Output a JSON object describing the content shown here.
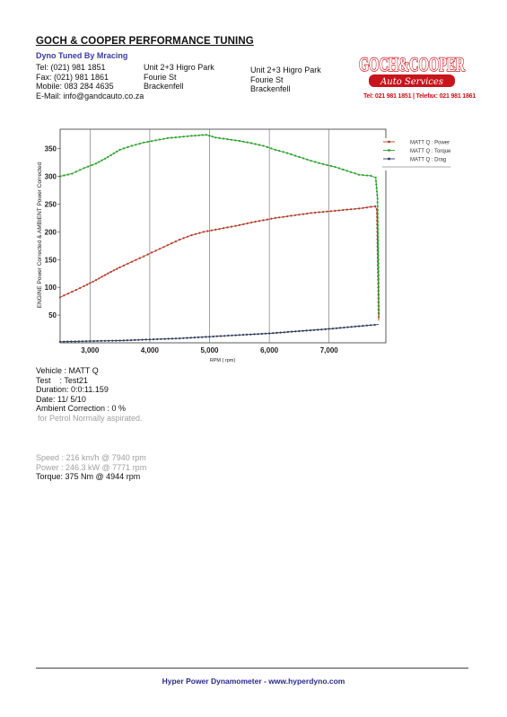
{
  "header": {
    "company": "GOCH & COOPER PERFORMANCE TUNING",
    "subtitle": "Dyno Tuned By Mracing",
    "contact": {
      "tel": "Tel: (021) 981 1851",
      "fax": "Fax: (021) 981 1861",
      "mobile": "Mobile: 083 284 4635",
      "email": "E-Mail: info@gandcauto.co.za"
    },
    "address1": [
      "Unit 2+3 Higro Park",
      "Fourie St",
      "Brackenfell"
    ],
    "address2": [
      "Unit 2+3 Higro Park",
      "Fourie St",
      "Brackenfell"
    ]
  },
  "logo": {
    "name": "GOCH&COOPER",
    "tagline": "Auto Services",
    "phone": "Tel: 021 981 1851 | Telefax: 021 981 1861",
    "color": "#c8141c"
  },
  "chart_data": {
    "type": "line",
    "xlabel": "RPM ( rpm)",
    "ylabel": "ENGINE Power Corrected & AMBIENT Power Corrected",
    "xlim": [
      2500,
      7950
    ],
    "ylim": [
      0,
      385
    ],
    "xticks": [
      3000,
      4000,
      5000,
      6000,
      7000
    ],
    "xtick_labels": [
      "3,000",
      "4,000",
      "5,000",
      "6,000",
      "7,000"
    ],
    "yticks": [
      50,
      100,
      150,
      200,
      250,
      300,
      350
    ],
    "legend_position": "top-right",
    "grid": "vertical",
    "series": [
      {
        "name": "MATT Q : Power",
        "color": "#b23a2a",
        "x": [
          2500,
          2700,
          2900,
          3100,
          3300,
          3500,
          3700,
          3900,
          4100,
          4300,
          4500,
          4700,
          4900,
          5100,
          5300,
          5500,
          5700,
          5900,
          6100,
          6300,
          6500,
          6700,
          6900,
          7100,
          7300,
          7500,
          7700,
          7771,
          7800,
          7820,
          7830
        ],
        "values": [
          82,
          92,
          102,
          113,
          125,
          136,
          146,
          156,
          166,
          176,
          186,
          194,
          200,
          204,
          208,
          212,
          217,
          221,
          225,
          228,
          231,
          234,
          236,
          238,
          240,
          242,
          245,
          246,
          240,
          120,
          40
        ]
      },
      {
        "name": "MATT Q : Torque",
        "color": "#2aa02a",
        "x": [
          2500,
          2700,
          2900,
          3100,
          3300,
          3500,
          3700,
          3900,
          4100,
          4300,
          4500,
          4700,
          4944,
          5100,
          5300,
          5500,
          5700,
          5900,
          6100,
          6300,
          6500,
          6700,
          6900,
          7100,
          7300,
          7500,
          7700,
          7780,
          7810,
          7825,
          7835
        ],
        "values": [
          300,
          305,
          315,
          323,
          335,
          348,
          355,
          361,
          365,
          369,
          371,
          373,
          375,
          370,
          367,
          364,
          360,
          355,
          348,
          342,
          335,
          328,
          322,
          317,
          310,
          303,
          301,
          298,
          260,
          150,
          45
        ]
      },
      {
        "name": "MATT Q : Drag",
        "color": "#2a3a5a",
        "x": [
          2500,
          3000,
          3500,
          4000,
          4500,
          5000,
          5500,
          6000,
          6500,
          7000,
          7500,
          7830
        ],
        "values": [
          2,
          3,
          4,
          6,
          8,
          11,
          14,
          17,
          21,
          25,
          30,
          33
        ]
      }
    ]
  },
  "run_info": {
    "vehicle": "Vehicle : MATT Q",
    "test": "Test    : Test21",
    "duration": "Duration: 0:0:11.159",
    "date": "Date: 11/ 5/10",
    "ambient": "Ambient Correction : 0 %",
    "note": "for Petrol Normally aspirated.",
    "speed": "Speed : 216 km/h @ 7940 rpm",
    "power": "Power : 246.3 kW @ 7771 rpm",
    "torque": "Torque: 375 Nm @ 4944 rpm"
  },
  "footer": {
    "text": "Hyper Power Dynamometer  -  www.hyperdyno.com"
  }
}
